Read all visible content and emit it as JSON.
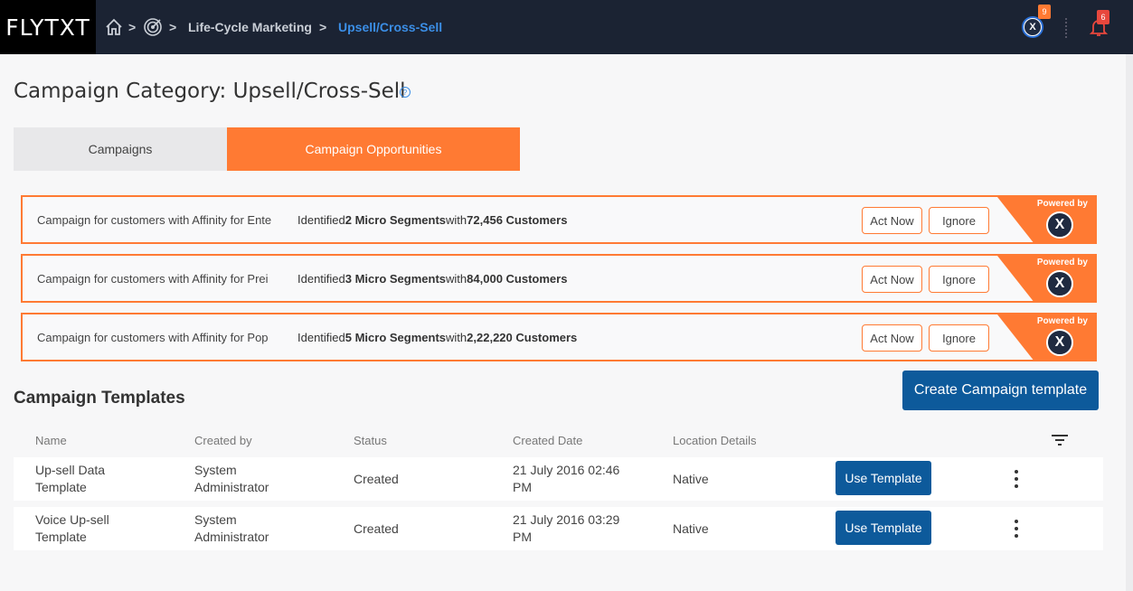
{
  "topbar": {
    "logo": "FLYTXT",
    "breadcrumb": {
      "separator": ">",
      "section": "Life-Cycle Marketing",
      "current": "Upsell/Cross-Sell"
    },
    "x_badge": "9",
    "notification_badge": "6"
  },
  "page": {
    "title": "Campaign Category: Upsell/Cross-Sell",
    "help": "?"
  },
  "tabs": [
    {
      "label": "Campaigns",
      "active": false
    },
    {
      "label": "Campaign Opportunities",
      "active": true
    }
  ],
  "opportunities": [
    {
      "desc": "Campaign for customers with Affinity for Ente",
      "identified": "Identified ",
      "segments": "2 Micro Segments",
      "with": "with ",
      "customers": "72,456 Customers",
      "act": "Act Now",
      "ignore": "Ignore",
      "powered": "Powered by",
      "logo": "X"
    },
    {
      "desc": "Campaign for customers with Affinity for Prei",
      "identified": "Identified ",
      "segments": "3 Micro Segments",
      "with": "with ",
      "customers": "84,000 Customers",
      "act": "Act Now",
      "ignore": "Ignore",
      "powered": "Powered by",
      "logo": "X"
    },
    {
      "desc": "Campaign for customers with Affinity for Pop",
      "identified": "Identified ",
      "segments": "5 Micro Segments",
      "with": "with ",
      "customers": "2,22,220 Customers",
      "act": "Act Now",
      "ignore": "Ignore",
      "powered": "Powered by",
      "logo": "X"
    }
  ],
  "templates": {
    "title": "Campaign Templates",
    "create_label": "Create Campaign template",
    "columns": [
      "Name",
      "Created by",
      "Status",
      "Created Date",
      "Location Details"
    ],
    "rows": [
      {
        "name_1": "Up-sell Data",
        "name_2": "Template",
        "created_by_1": "System",
        "created_by_2": "Administrator",
        "status": "Created",
        "date_1": "21 July 2016 02:46",
        "date_2": "PM",
        "location": "Native",
        "action": "Use Template"
      },
      {
        "name_1": "Voice Up-sell",
        "name_2": "Template",
        "created_by_1": "System",
        "created_by_2": "Administrator",
        "status": "Created",
        "date_1": "21 July 2016 03:29",
        "date_2": "PM",
        "location": "Native",
        "action": "Use Template"
      }
    ]
  },
  "colors": {
    "accent": "#ff7a33",
    "primary": "#0d5a9b",
    "topbar": "#1b2333",
    "link": "#3b8ee6"
  }
}
